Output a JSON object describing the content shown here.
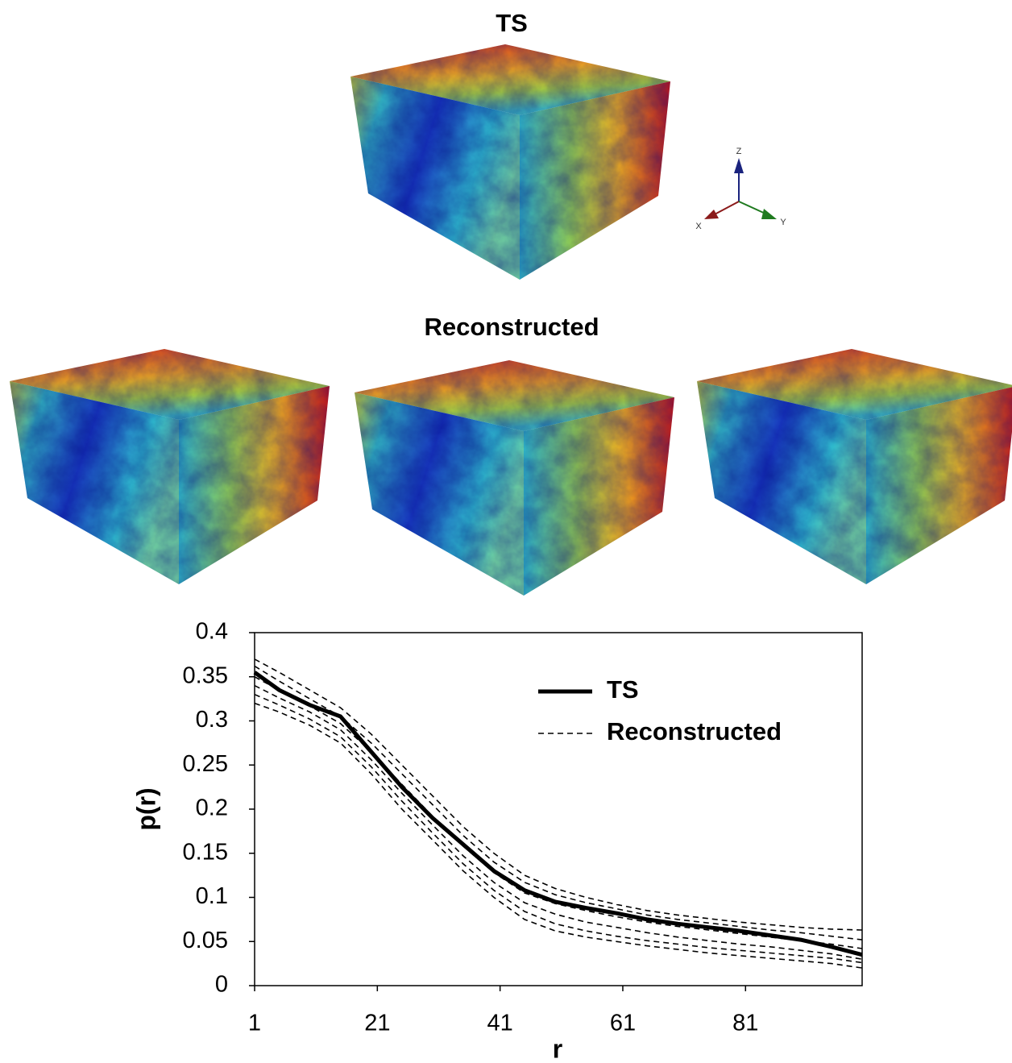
{
  "panels": {
    "top_title": "TS",
    "bottom_title": "Reconstructed",
    "triad": {
      "z": "Z",
      "x": "X",
      "y": "Y"
    }
  },
  "chart_data": {
    "type": "line",
    "x_label": "r",
    "y_label": "p(r)",
    "x": [
      1,
      5,
      10,
      15,
      20,
      25,
      30,
      35,
      40,
      45,
      50,
      55,
      60,
      65,
      70,
      75,
      80,
      85,
      90,
      95,
      100
    ],
    "xlim": [
      1,
      100
    ],
    "xticks": [
      1,
      21,
      41,
      61,
      81
    ],
    "ylim": [
      0,
      0.4
    ],
    "yticks": [
      0,
      0.05,
      0.1,
      0.15,
      0.2,
      0.25,
      0.3,
      0.35,
      0.4
    ],
    "legend": "upper right",
    "series": [
      {
        "name": "TS",
        "color": "#000000",
        "style": "solid",
        "values": [
          0.355,
          0.335,
          0.318,
          0.305,
          0.265,
          0.225,
          0.19,
          0.16,
          0.13,
          0.108,
          0.095,
          0.088,
          0.082,
          0.075,
          0.07,
          0.066,
          0.062,
          0.057,
          0.052,
          0.044,
          0.035
        ]
      },
      {
        "name": "Reconstructed",
        "color": "#000000",
        "style": "dashed",
        "values": [
          [
            0.37,
            0.355,
            0.335,
            0.315,
            0.285,
            0.25,
            0.215,
            0.18,
            0.15,
            0.125,
            0.11,
            0.1,
            0.092,
            0.085,
            0.08,
            0.076,
            0.072,
            0.069,
            0.066,
            0.064,
            0.063
          ],
          [
            0.362,
            0.345,
            0.325,
            0.305,
            0.275,
            0.24,
            0.205,
            0.17,
            0.14,
            0.117,
            0.103,
            0.094,
            0.087,
            0.08,
            0.075,
            0.071,
            0.067,
            0.063,
            0.06,
            0.056,
            0.052
          ],
          [
            0.35,
            0.335,
            0.317,
            0.297,
            0.265,
            0.228,
            0.192,
            0.158,
            0.128,
            0.105,
            0.093,
            0.085,
            0.078,
            0.072,
            0.067,
            0.063,
            0.059,
            0.055,
            0.051,
            0.047,
            0.042
          ],
          [
            0.34,
            0.326,
            0.31,
            0.29,
            0.256,
            0.218,
            0.182,
            0.147,
            0.117,
            0.094,
            0.081,
            0.072,
            0.066,
            0.06,
            0.055,
            0.051,
            0.047,
            0.044,
            0.04,
            0.036,
            0.03
          ],
          [
            0.33,
            0.318,
            0.302,
            0.282,
            0.248,
            0.209,
            0.173,
            0.138,
            0.108,
            0.084,
            0.07,
            0.062,
            0.056,
            0.051,
            0.047,
            0.043,
            0.04,
            0.037,
            0.034,
            0.031,
            0.026
          ],
          [
            0.32,
            0.31,
            0.295,
            0.275,
            0.24,
            0.2,
            0.165,
            0.13,
            0.1,
            0.075,
            0.062,
            0.055,
            0.05,
            0.045,
            0.041,
            0.037,
            0.034,
            0.031,
            0.028,
            0.025,
            0.02
          ]
        ]
      }
    ]
  }
}
